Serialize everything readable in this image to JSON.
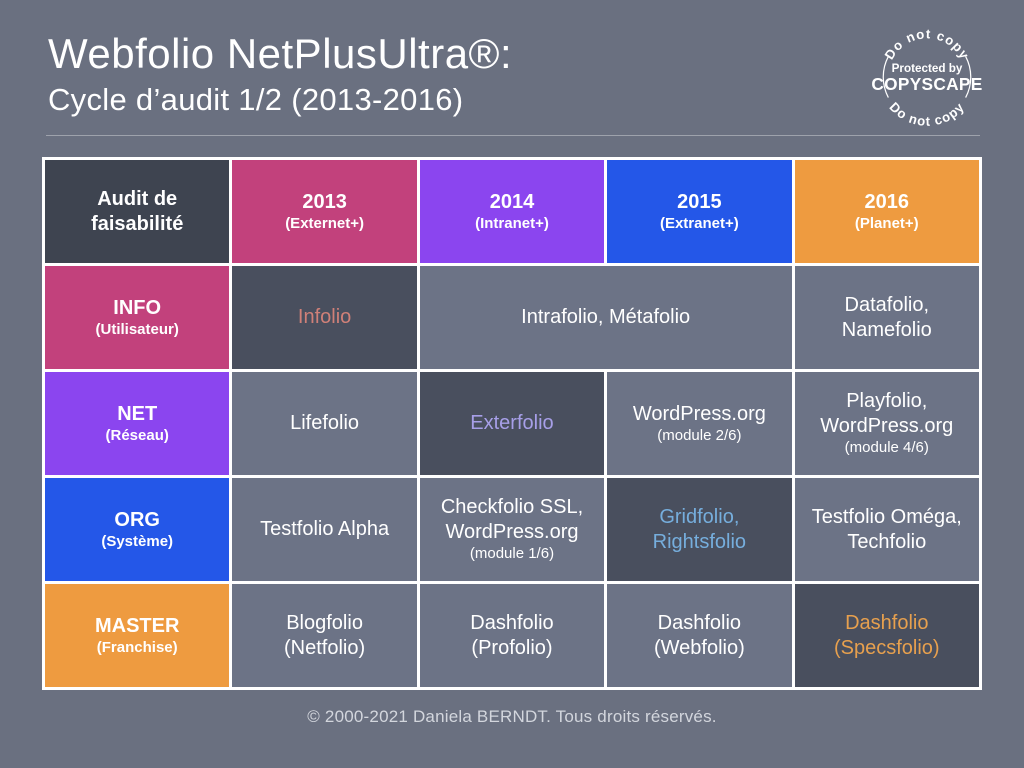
{
  "page": {
    "title": "Webfolio NetPlusUltra®:",
    "subtitle": "Cycle d’audit 1/2 (2013-2016)",
    "footer": "© 2000-2021 Daniela BERNDT. Tous droits réservés."
  },
  "badge": {
    "top_text": "Do not copy",
    "center_line1": "Protected by",
    "center_line2": "COPYSCAPE",
    "bottom_text": "Do not copy"
  },
  "colors": {
    "background": "#6a7080",
    "border": "#ffffff",
    "header_dark": "#3e4450",
    "cell_normal": "#6c7386",
    "cell_dark": "#494f5e",
    "magenta": "#c2417c",
    "purple": "#8b45ef",
    "blue": "#2457e8",
    "orange": "#ee9b40",
    "text_white": "#ffffff",
    "accent_salmon": "#d08078",
    "accent_periwinkle": "#a79fe8",
    "accent_lightblue": "#76aedd",
    "accent_orange": "#e7a04e"
  },
  "table": {
    "rows": [
      {
        "cells": [
          {
            "name": "table-title-cell",
            "label": "Audit de\nfaisabilité",
            "bg": "#3e4450",
            "fg": "#ffffff",
            "bold": true
          },
          {
            "name": "column-header-2013",
            "label": "2013",
            "sublabel": "(Externet+)",
            "bg": "#c2417c",
            "fg": "#ffffff",
            "bold": true
          },
          {
            "name": "column-header-2014",
            "label": "2014",
            "sublabel": "(Intranet+)",
            "bg": "#8b45ef",
            "fg": "#ffffff",
            "bold": true
          },
          {
            "name": "column-header-2015",
            "label": "2015",
            "sublabel": "(Extranet+)",
            "bg": "#2457e8",
            "fg": "#ffffff",
            "bold": true
          },
          {
            "name": "column-header-2016",
            "label": "2016",
            "sublabel": "(Planet+)",
            "bg": "#ee9b40",
            "fg": "#ffffff",
            "bold": true
          }
        ]
      },
      {
        "cells": [
          {
            "name": "row-header-info",
            "label": "INFO",
            "sublabel": "(Utilisateur)",
            "bg": "#c2417c",
            "fg": "#ffffff",
            "bold": true
          },
          {
            "name": "data-cell-info-2013",
            "label": "Infolio",
            "bg": "#494f5e",
            "fg": "#d08078"
          },
          {
            "name": "data-cell-info-2014-2015",
            "label": "Intrafolio, Métafolio",
            "bg": "#6c7386",
            "fg": "#ffffff",
            "colspan": 2
          },
          {
            "name": "data-cell-info-2016",
            "label": "Datafolio,\nNamefolio",
            "bg": "#6c7386",
            "fg": "#ffffff"
          }
        ]
      },
      {
        "cells": [
          {
            "name": "row-header-net",
            "label": "NET",
            "sublabel": "(Réseau)",
            "bg": "#8b45ef",
            "fg": "#ffffff",
            "bold": true
          },
          {
            "name": "data-cell-net-2013",
            "label": "Lifefolio",
            "bg": "#6c7386",
            "fg": "#ffffff"
          },
          {
            "name": "data-cell-net-2014",
            "label": "Exterfolio",
            "bg": "#494f5e",
            "fg": "#a79fe8"
          },
          {
            "name": "data-cell-net-2015",
            "label": "WordPress.org",
            "sublabel": "(module 2/6)",
            "bg": "#6c7386",
            "fg": "#ffffff"
          },
          {
            "name": "data-cell-net-2016",
            "label": "Playfolio,\nWordPress.org",
            "sublabel": "(module 4/6)",
            "bg": "#6c7386",
            "fg": "#ffffff"
          }
        ]
      },
      {
        "cells": [
          {
            "name": "row-header-org",
            "label": "ORG",
            "sublabel": "(Système)",
            "bg": "#2457e8",
            "fg": "#ffffff",
            "bold": true
          },
          {
            "name": "data-cell-org-2013",
            "label": "Testfolio Alpha",
            "bg": "#6c7386",
            "fg": "#ffffff"
          },
          {
            "name": "data-cell-org-2014",
            "label": "Checkfolio SSL,\nWordPress.org",
            "sublabel": "(module 1/6)",
            "bg": "#6c7386",
            "fg": "#ffffff"
          },
          {
            "name": "data-cell-org-2015",
            "label": "Gridfolio,\nRightsfolio",
            "bg": "#494f5e",
            "fg": "#76aedd"
          },
          {
            "name": "data-cell-org-2016",
            "label": "Testfolio Oméga,\nTechfolio",
            "bg": "#6c7386",
            "fg": "#ffffff"
          }
        ]
      },
      {
        "cells": [
          {
            "name": "row-header-master",
            "label": "MASTER",
            "sublabel": "(Franchise)",
            "bg": "#ee9b40",
            "fg": "#ffffff",
            "bold": true
          },
          {
            "name": "data-cell-master-2013",
            "label": "Blogfolio\n(Netfolio)",
            "bg": "#6c7386",
            "fg": "#ffffff"
          },
          {
            "name": "data-cell-master-2014",
            "label": "Dashfolio\n(Profolio)",
            "bg": "#6c7386",
            "fg": "#ffffff"
          },
          {
            "name": "data-cell-master-2015",
            "label": "Dashfolio\n(Webfolio)",
            "bg": "#6c7386",
            "fg": "#ffffff"
          },
          {
            "name": "data-cell-master-2016",
            "label": "Dashfolio\n(Specsfolio)",
            "bg": "#494f5e",
            "fg": "#e7a04e"
          }
        ]
      }
    ]
  }
}
